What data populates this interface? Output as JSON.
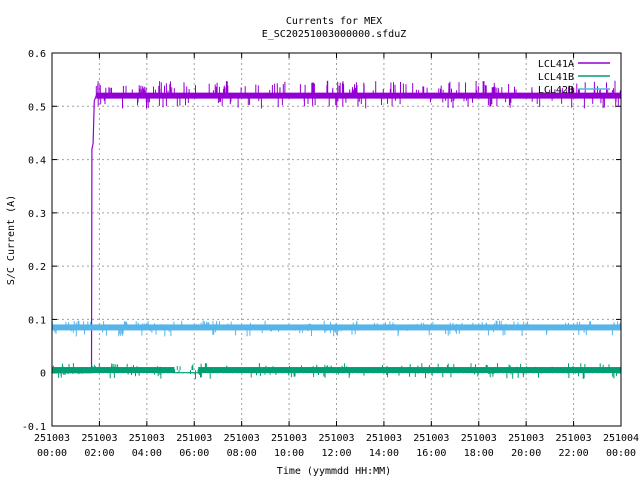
{
  "chart_data": {
    "type": "line",
    "title": "Currents for MEX",
    "subtitle": "E_SC20251003000000.sfduZ",
    "xlabel": "Time (yymmdd HH:MM)",
    "ylabel": "S/C Current (A)",
    "xlim": [
      "2025-10-03 00:00",
      "2025-10-04 00:00"
    ],
    "ylim": [
      -0.1,
      0.6
    ],
    "grid": true,
    "legend_position": "top-right",
    "yticks": [
      -0.1,
      0,
      0.1,
      0.2,
      0.3,
      0.4,
      0.5,
      0.6
    ],
    "ytick_labels": [
      "-0.1",
      "0",
      "0.1",
      "0.2",
      "0.3",
      "0.4",
      "0.5",
      "0.6"
    ],
    "xticks": [
      {
        "date": "251003",
        "time": "00:00"
      },
      {
        "date": "251003",
        "time": "02:00"
      },
      {
        "date": "251003",
        "time": "04:00"
      },
      {
        "date": "251003",
        "time": "06:00"
      },
      {
        "date": "251003",
        "time": "08:00"
      },
      {
        "date": "251003",
        "time": "10:00"
      },
      {
        "date": "251003",
        "time": "12:00"
      },
      {
        "date": "251003",
        "time": "14:00"
      },
      {
        "date": "251003",
        "time": "16:00"
      },
      {
        "date": "251003",
        "time": "18:00"
      },
      {
        "date": "251003",
        "time": "20:00"
      },
      {
        "date": "251003",
        "time": "22:00"
      },
      {
        "date": "251004",
        "time": "00:00"
      }
    ],
    "series": [
      {
        "name": "LCL41A",
        "color": "#9400d3",
        "points": [
          [
            "2025-10-03 00:00",
            0.0
          ],
          [
            "2025-10-03 01:40",
            0.0
          ],
          [
            "2025-10-03 01:41",
            0.42
          ],
          [
            "2025-10-03 01:44",
            0.43
          ],
          [
            "2025-10-03 01:47",
            0.51
          ],
          [
            "2025-10-03 01:52",
            0.52
          ],
          [
            "2025-10-03 04:00",
            0.52
          ],
          [
            "2025-10-03 08:00",
            0.52
          ],
          [
            "2025-10-03 12:00",
            0.52
          ],
          [
            "2025-10-03 16:00",
            0.52
          ],
          [
            "2025-10-03 20:00",
            0.52
          ],
          [
            "2025-10-04 00:00",
            0.52
          ]
        ]
      },
      {
        "name": "LCL41B",
        "color": "#009e73",
        "points": [
          [
            "2025-10-03 00:00",
            0.005
          ],
          [
            "2025-10-03 05:10",
            0.005
          ],
          [
            "2025-10-03 05:10",
            0.0
          ],
          [
            "2025-10-03 06:10",
            0.0
          ],
          [
            "2025-10-03 06:10",
            0.005
          ],
          [
            "2025-10-04 00:00",
            0.005
          ]
        ]
      },
      {
        "name": "LCL42B",
        "color": "#56b4e9",
        "points": [
          [
            "2025-10-03 00:00",
            0.085
          ],
          [
            "2025-10-03 12:00",
            0.085
          ],
          [
            "2025-10-04 00:00",
            0.085
          ]
        ]
      }
    ]
  }
}
